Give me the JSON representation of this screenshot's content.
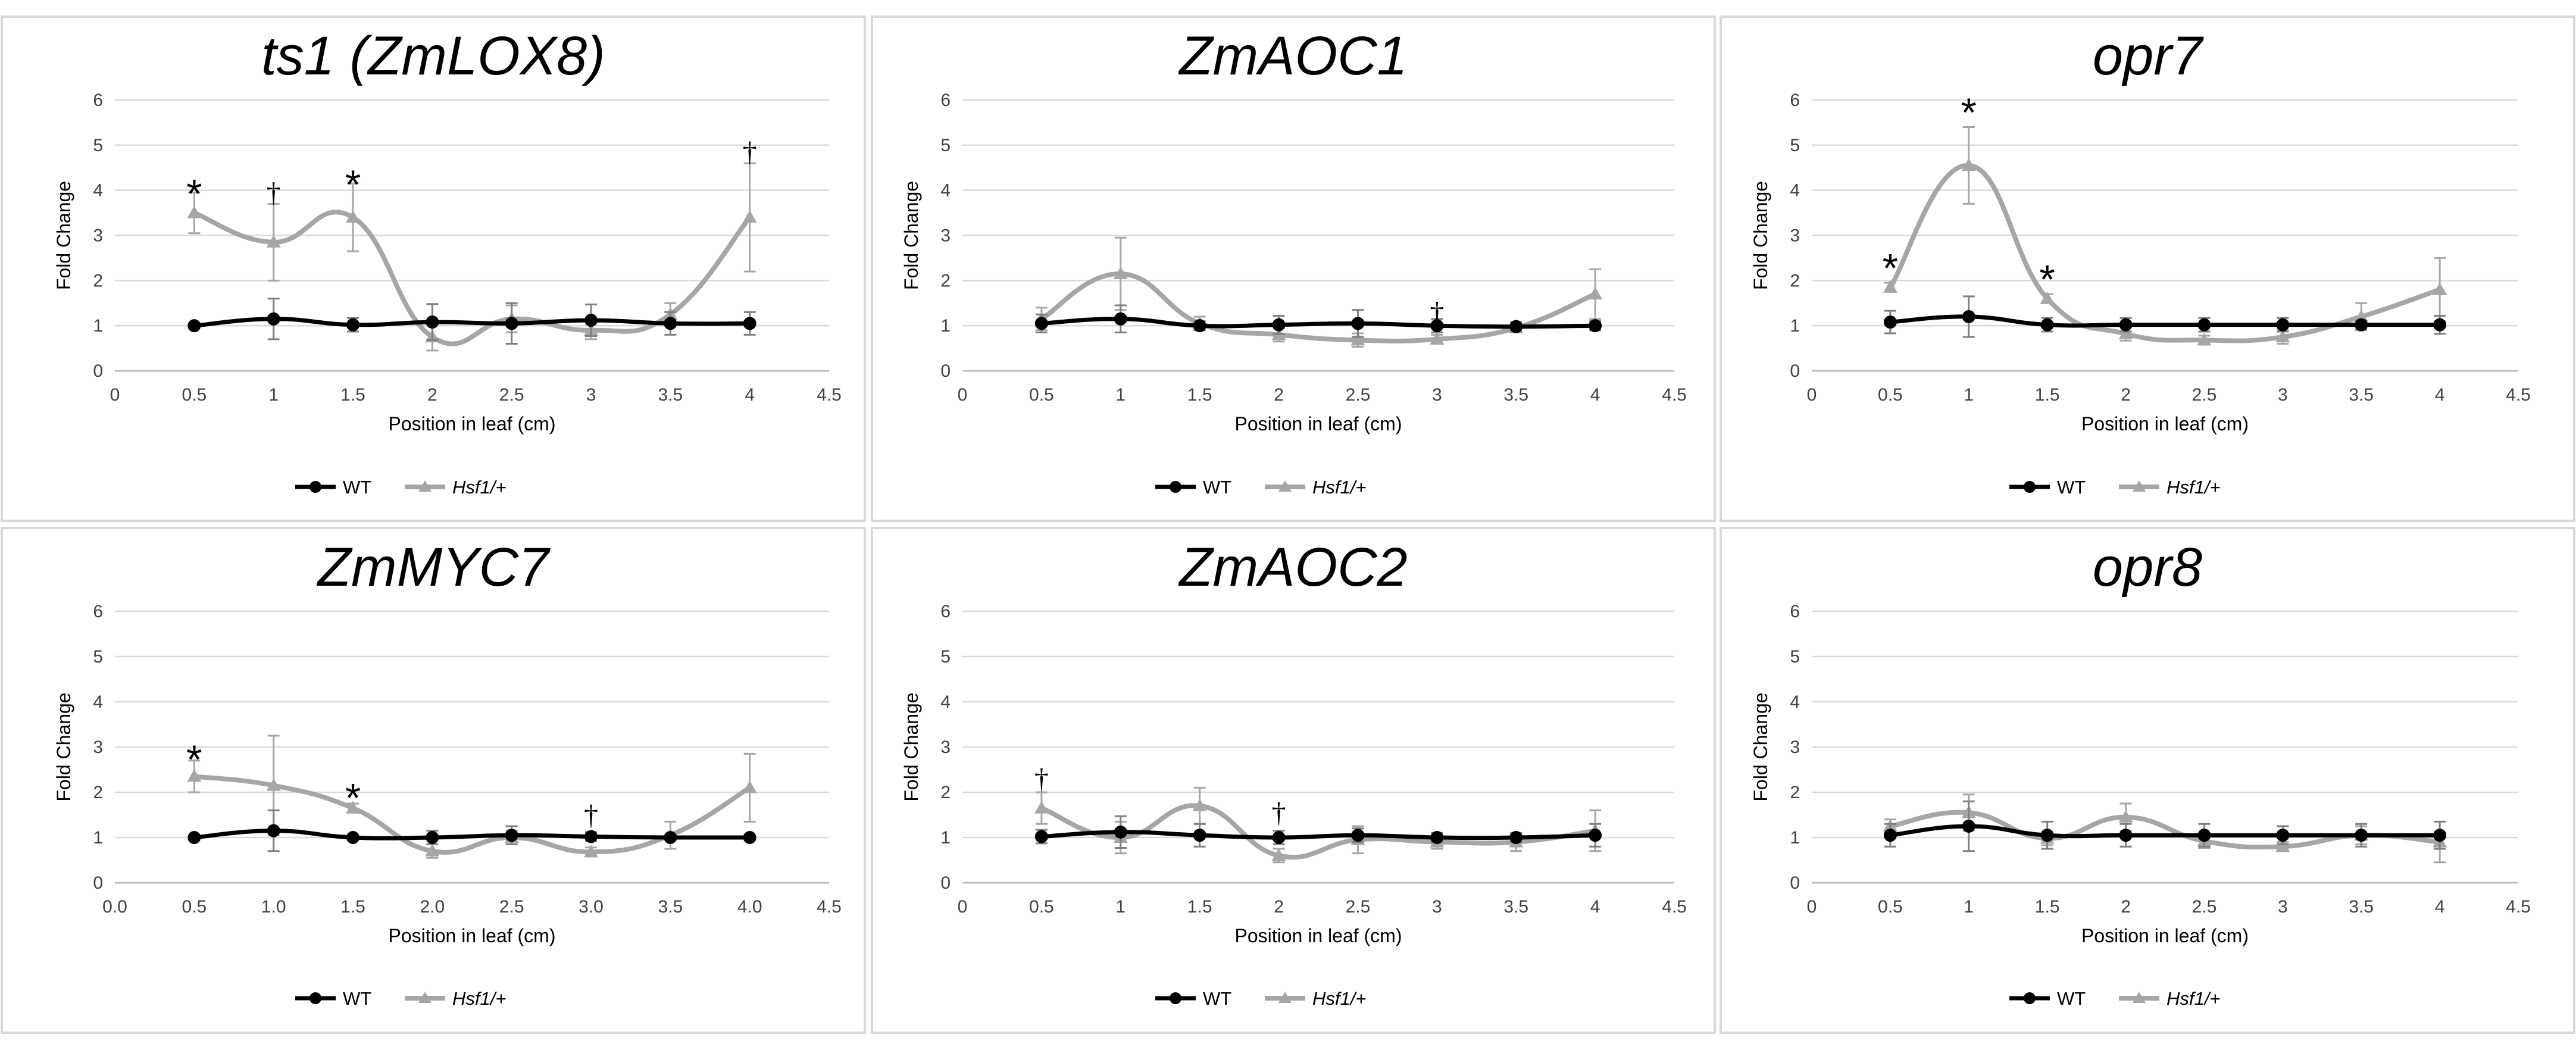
{
  "chart_data": [
    {
      "type": "line",
      "title": "ts1 (ZmLOX8)",
      "xlabel": "Position in leaf (cm)",
      "ylabel": "Fold Change",
      "xlim": [
        0,
        4.5
      ],
      "ylim": [
        0,
        6
      ],
      "x_ticks": [
        "0",
        "0.5",
        "1",
        "1.5",
        "2",
        "2.5",
        "3",
        "3.5",
        "4",
        "4.5"
      ],
      "y_ticks": [
        "0",
        "1",
        "2",
        "3",
        "4",
        "5",
        "6"
      ],
      "x": [
        0.5,
        1,
        1.5,
        2,
        2.5,
        3,
        3.5,
        4
      ],
      "series": [
        {
          "name": "WT",
          "color": "#000000",
          "marker": "circle",
          "values": [
            1.0,
            1.15,
            1.02,
            1.08,
            1.05,
            1.12,
            1.05,
            1.05
          ],
          "errors": [
            0.05,
            0.45,
            0.15,
            0.4,
            0.45,
            0.35,
            0.25,
            0.25
          ]
        },
        {
          "name": "Hsf1/+",
          "color": "#a6a6a6",
          "marker": "triangle",
          "values": [
            3.5,
            2.85,
            3.4,
            0.75,
            1.15,
            0.9,
            1.25,
            3.4
          ],
          "errors": [
            0.45,
            0.85,
            0.75,
            0.3,
            0.3,
            0.2,
            0.25,
            1.2
          ]
        }
      ],
      "annotations": [
        {
          "text": "*",
          "x": 0.5,
          "y": 4.15
        },
        {
          "text": "†",
          "x": 1,
          "y": 3.95
        },
        {
          "text": "*",
          "x": 1.5,
          "y": 4.35
        },
        {
          "text": "†",
          "x": 4,
          "y": 4.85
        }
      ]
    },
    {
      "type": "line",
      "title": "ZmAOC1",
      "xlabel": "Position in leaf (cm)",
      "ylabel": "Fold Change",
      "xlim": [
        0,
        4.5
      ],
      "ylim": [
        0,
        6
      ],
      "x_ticks": [
        "0",
        "0.5",
        "1",
        "1.5",
        "2",
        "2.5",
        "3",
        "3.5",
        "4",
        "4.5"
      ],
      "y_ticks": [
        "0",
        "1",
        "2",
        "3",
        "4",
        "5",
        "6"
      ],
      "x": [
        0.5,
        1,
        1.5,
        2,
        2.5,
        3,
        3.5,
        4
      ],
      "series": [
        {
          "name": "WT",
          "color": "#000000",
          "marker": "circle",
          "values": [
            1.05,
            1.15,
            1.0,
            1.02,
            1.05,
            1.0,
            0.98,
            1.0
          ],
          "errors": [
            0.2,
            0.3,
            0.1,
            0.2,
            0.3,
            0.15,
            0.1,
            0.1
          ]
        },
        {
          "name": "Hsf1/+",
          "color": "#a6a6a6",
          "marker": "triangle",
          "values": [
            1.15,
            2.15,
            1.05,
            0.8,
            0.68,
            0.7,
            0.95,
            1.7
          ],
          "errors": [
            0.25,
            0.8,
            0.15,
            0.15,
            0.15,
            0.1,
            0.1,
            0.55
          ]
        }
      ],
      "annotations": [
        {
          "text": "†",
          "x": 3,
          "y": 1.3
        }
      ]
    },
    {
      "type": "line",
      "title": "opr7",
      "xlabel": "Position in leaf (cm)",
      "ylabel": "Fold Change",
      "xlim": [
        0,
        4.5
      ],
      "ylim": [
        0,
        6
      ],
      "x_ticks": [
        "0",
        "0.5",
        "1",
        "1.5",
        "2",
        "2.5",
        "3",
        "3.5",
        "4",
        "4.5"
      ],
      "y_ticks": [
        "0",
        "1",
        "2",
        "3",
        "4",
        "5",
        "6"
      ],
      "x": [
        0.5,
        1,
        1.5,
        2,
        2.5,
        3,
        3.5,
        4
      ],
      "series": [
        {
          "name": "WT",
          "color": "#000000",
          "marker": "circle",
          "values": [
            1.08,
            1.2,
            1.02,
            1.02,
            1.02,
            1.02,
            1.02,
            1.02
          ],
          "errors": [
            0.25,
            0.45,
            0.15,
            0.15,
            0.15,
            0.15,
            0.1,
            0.2
          ]
        },
        {
          "name": "Hsf1/+",
          "color": "#a6a6a6",
          "marker": "triangle",
          "values": [
            1.85,
            4.55,
            1.6,
            0.82,
            0.68,
            0.75,
            1.2,
            1.8
          ],
          "errors": [
            0.1,
            0.85,
            0.1,
            0.15,
            0.1,
            0.15,
            0.3,
            0.7
          ]
        }
      ],
      "annotations": [
        {
          "text": "*",
          "x": 0.5,
          "y": 2.5
        },
        {
          "text": "*",
          "x": 1,
          "y": 5.95
        },
        {
          "text": "*",
          "x": 1.5,
          "y": 2.25
        }
      ]
    },
    {
      "type": "line",
      "title": "ZmMYC7",
      "xlabel": "Position in leaf (cm)",
      "ylabel": "Fold Change",
      "xlim": [
        0,
        4.5
      ],
      "ylim": [
        0,
        6
      ],
      "x_ticks": [
        "0.0",
        "0.5",
        "1.0",
        "1.5",
        "2.0",
        "2.5",
        "3.0",
        "3.5",
        "4.0",
        "4.5"
      ],
      "y_ticks": [
        "0",
        "1",
        "2",
        "3",
        "4",
        "5",
        "6"
      ],
      "x": [
        0.5,
        1,
        1.5,
        2,
        2.5,
        3,
        3.5,
        4
      ],
      "series": [
        {
          "name": "WT",
          "color": "#000000",
          "marker": "circle",
          "values": [
            1.0,
            1.15,
            1.0,
            1.0,
            1.05,
            1.02,
            1.0,
            1.0
          ],
          "errors": [
            0.05,
            0.45,
            0.05,
            0.15,
            0.2,
            0.1,
            0.05,
            0.05
          ]
        },
        {
          "name": "Hsf1/+",
          "color": "#a6a6a6",
          "marker": "triangle",
          "values": [
            2.35,
            2.15,
            1.65,
            0.7,
            1.0,
            0.68,
            1.05,
            2.1
          ],
          "errors": [
            0.35,
            1.1,
            0.1,
            0.15,
            0.15,
            0.1,
            0.3,
            0.75
          ]
        }
      ],
      "annotations": [
        {
          "text": "*",
          "x": 0.5,
          "y": 2.95
        },
        {
          "text": "*",
          "x": 1.5,
          "y": 2.1
        },
        {
          "text": "†",
          "x": 3,
          "y": 1.5
        }
      ]
    },
    {
      "type": "line",
      "title": "ZmAOC2",
      "xlabel": "Position in leaf (cm)",
      "ylabel": "Fold Change",
      "xlim": [
        0,
        4.5
      ],
      "ylim": [
        0,
        6
      ],
      "x_ticks": [
        "0",
        "0.5",
        "1",
        "1.5",
        "2",
        "2.5",
        "3",
        "3.5",
        "4",
        "4.5"
      ],
      "y_ticks": [
        "0",
        "1",
        "2",
        "3",
        "4",
        "5",
        "6"
      ],
      "x": [
        0.5,
        1,
        1.5,
        2,
        2.5,
        3,
        3.5,
        4
      ],
      "series": [
        {
          "name": "WT",
          "color": "#000000",
          "marker": "circle",
          "values": [
            1.02,
            1.12,
            1.05,
            1.0,
            1.05,
            1.0,
            1.0,
            1.05
          ],
          "errors": [
            0.15,
            0.35,
            0.25,
            0.15,
            0.15,
            0.1,
            0.1,
            0.25
          ]
        },
        {
          "name": "Hsf1/+",
          "color": "#a6a6a6",
          "marker": "triangle",
          "values": [
            1.65,
            1.0,
            1.7,
            0.6,
            0.95,
            0.9,
            0.9,
            1.15
          ],
          "errors": [
            0.35,
            0.35,
            0.4,
            0.15,
            0.3,
            0.15,
            0.2,
            0.45
          ]
        }
      ],
      "annotations": [
        {
          "text": "†",
          "x": 0.5,
          "y": 2.3
        },
        {
          "text": "†",
          "x": 2,
          "y": 1.55
        }
      ]
    },
    {
      "type": "line",
      "title": "opr8",
      "xlabel": "Position in leaf (cm)",
      "ylabel": "Fold Change",
      "xlim": [
        0,
        4.5
      ],
      "ylim": [
        0,
        6
      ],
      "x_ticks": [
        "0",
        "0.5",
        "1",
        "1.5",
        "2",
        "2.5",
        "3",
        "3.5",
        "4",
        "4.5"
      ],
      "y_ticks": [
        "0",
        "1",
        "2",
        "3",
        "4",
        "5",
        "6"
      ],
      "x": [
        0.5,
        1,
        1.5,
        2,
        2.5,
        3,
        3.5,
        4
      ],
      "series": [
        {
          "name": "WT",
          "color": "#000000",
          "marker": "circle",
          "values": [
            1.05,
            1.25,
            1.05,
            1.05,
            1.05,
            1.05,
            1.05,
            1.05
          ],
          "errors": [
            0.25,
            0.55,
            0.3,
            0.25,
            0.25,
            0.2,
            0.25,
            0.3
          ]
        },
        {
          "name": "Hsf1/+",
          "color": "#a6a6a6",
          "marker": "triangle",
          "values": [
            1.25,
            1.55,
            0.98,
            1.45,
            0.92,
            0.8,
            1.05,
            0.9
          ],
          "errors": [
            0.15,
            0.4,
            0.15,
            0.3,
            0.15,
            0.1,
            0.2,
            0.45
          ]
        }
      ],
      "annotations": []
    }
  ]
}
